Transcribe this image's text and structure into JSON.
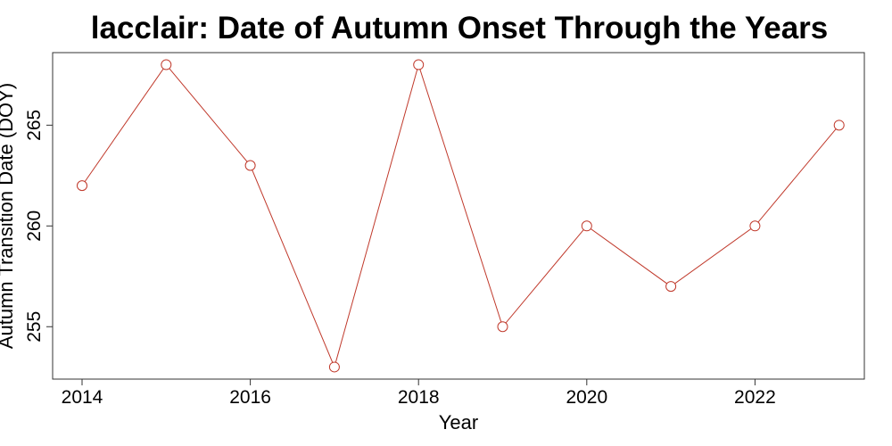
{
  "chart_data": {
    "type": "line",
    "title": "lacclair: Date of Autumn Onset Through the Years",
    "xlabel": "Year",
    "ylabel": "Autumn Transition Date (DOY)",
    "x": [
      2014,
      2015,
      2016,
      2017,
      2018,
      2019,
      2020,
      2021,
      2022,
      2023
    ],
    "series": [
      {
        "values": [
          262,
          268,
          263,
          253,
          268,
          255,
          260,
          257,
          260,
          265
        ]
      }
    ],
    "xlim": [
      2013.65,
      2023.3
    ],
    "ylim": [
      252.4,
      268.6
    ],
    "xticks": [
      2014,
      2016,
      2018,
      2020,
      2022
    ],
    "yticks": [
      255,
      260,
      265
    ],
    "grid": false,
    "legend": "none",
    "line_color": "#c0392b",
    "marker": "open-circle"
  }
}
